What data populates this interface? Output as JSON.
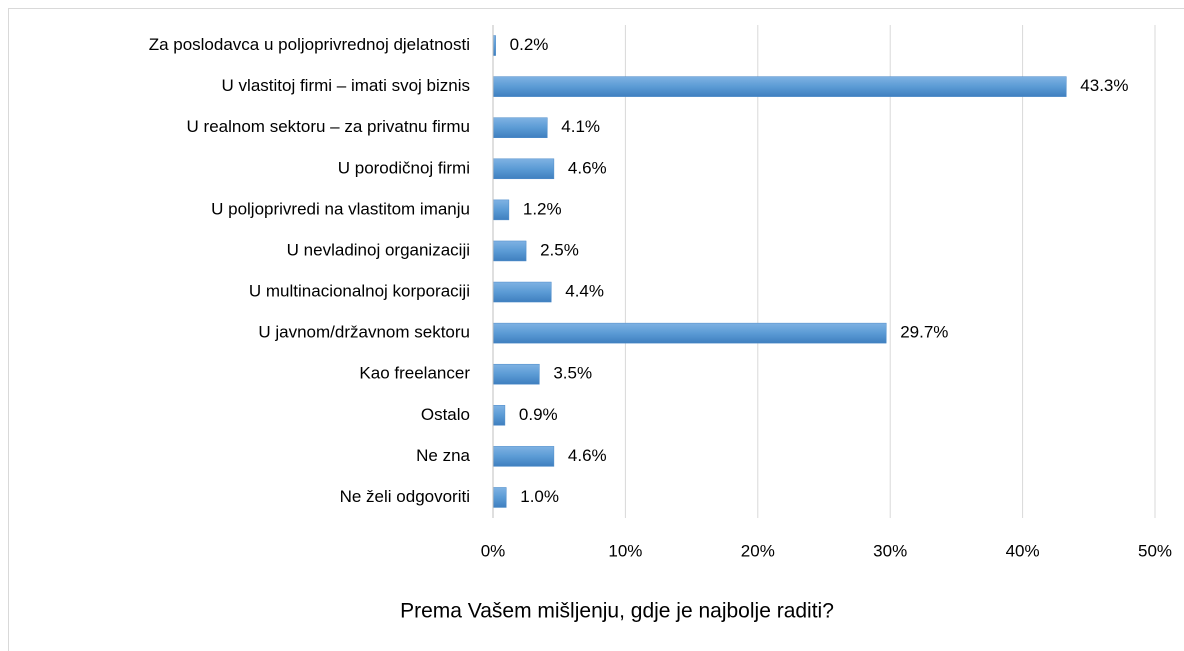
{
  "chart_data": {
    "type": "barh",
    "title": "Prema Vašem mišljenju, gdje je najbolje raditi?",
    "categories": [
      "Za poslodavca u poljoprivrednoj djelatnosti",
      "U vlastitoj firmi – imati svoj biznis",
      "U realnom sektoru – za privatnu firmu",
      "U porodičnoj firmi",
      "U poljoprivredi na vlastitom imanju",
      "U nevladinoj organizaciji",
      "U multinacionalnoj korporaciji",
      "U javnom/državnom sektoru",
      "Kao freelancer",
      "Ostalo",
      "Ne zna",
      "Ne želi odgovoriti"
    ],
    "values": [
      0.2,
      43.3,
      4.1,
      4.6,
      1.2,
      2.5,
      4.4,
      29.7,
      3.5,
      0.9,
      4.6,
      1.0
    ],
    "value_labels": [
      "0.2%",
      "43.3%",
      "4.1%",
      "4.6%",
      "1.2%",
      "2.5%",
      "4.4%",
      "29.7%",
      "3.5%",
      "0.9%",
      "4.6%",
      "1.0%"
    ],
    "color": "#5b9bd5",
    "xlim": [
      0,
      50
    ],
    "xticks": [
      {
        "value": 0,
        "label": "0%"
      },
      {
        "value": 10,
        "label": "10%"
      },
      {
        "value": 20,
        "label": "20%"
      },
      {
        "value": 30,
        "label": "30%"
      },
      {
        "value": 40,
        "label": "40%"
      },
      {
        "value": 50,
        "label": "50%"
      }
    ],
    "grid": true
  }
}
